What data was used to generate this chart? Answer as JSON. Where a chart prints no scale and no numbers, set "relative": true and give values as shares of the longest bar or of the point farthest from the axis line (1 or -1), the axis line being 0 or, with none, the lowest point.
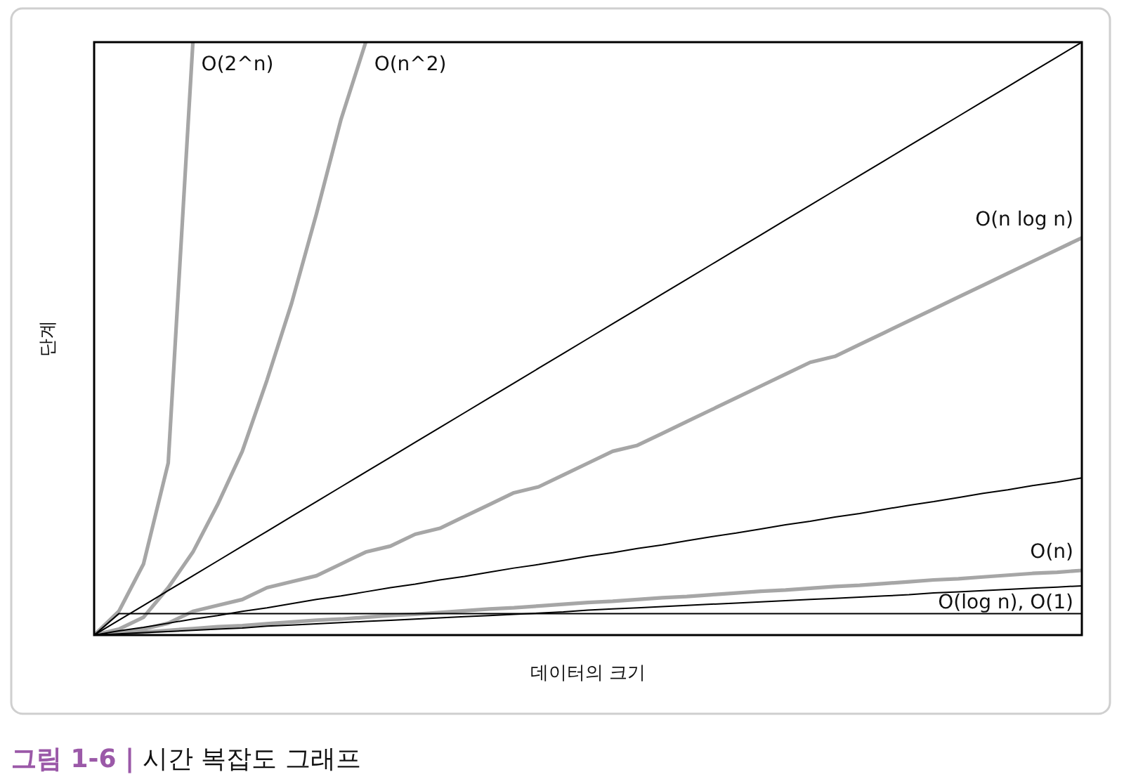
{
  "chart_data": {
    "type": "line",
    "relative": true,
    "title": "**그림 1-6 |** 시간 복잡도 그래프",
    "xlabel": "데이터의 크기",
    "ylabel": "단계",
    "categories": [
      null,
      null,
      null,
      null,
      null,
      null,
      null,
      null,
      null,
      null,
      null,
      null,
      null,
      null,
      null,
      null,
      null,
      null,
      null,
      null,
      null,
      null,
      null,
      null,
      null,
      null,
      null,
      null,
      null,
      null,
      null,
      null,
      null,
      null,
      null,
      null,
      null,
      null,
      null,
      null,
      null
    ],
    "series": [
      {
        "name": "O(2^n)",
        "color": "#a6a6a6",
        "values": [
          0,
          0.04,
          0.12,
          0.29,
          1,
          null,
          null,
          null,
          null,
          null,
          null,
          null,
          null,
          null,
          null,
          null,
          null,
          null,
          null,
          null,
          null,
          null,
          null,
          null,
          null,
          null,
          null,
          null,
          null,
          null,
          null,
          null,
          null,
          null,
          null,
          null,
          null,
          null,
          null,
          null,
          null
        ]
      },
      {
        "name": "O(n^2)",
        "color": "#a6a6a6",
        "values": [
          0,
          0.01,
          0.03,
          0.08,
          0.14,
          0.22,
          0.31,
          0.43,
          0.56,
          0.71,
          0.87,
          1,
          null,
          null,
          null,
          null,
          null,
          null,
          null,
          null,
          null,
          null,
          null,
          null,
          null,
          null,
          null,
          null,
          null,
          null,
          null,
          null,
          null,
          null,
          null,
          null,
          null,
          null,
          null,
          null,
          null
        ]
      },
      {
        "name": "O(n log n)",
        "color": "#a6a6a6",
        "values": [
          0,
          0.004,
          0.01,
          0.02,
          0.04,
          0.05,
          0.06,
          0.08,
          0.09,
          0.1,
          0.12,
          0.14,
          0.15,
          0.17,
          0.18,
          0.2,
          0.22,
          0.24,
          0.25,
          0.27,
          0.29,
          0.31,
          0.32,
          0.34,
          0.36,
          0.38,
          0.4,
          0.42,
          0.44,
          0.46,
          0.47,
          0.49,
          0.51,
          0.53,
          0.55,
          0.57,
          0.59,
          0.61,
          0.63,
          0.65,
          0.67
        ]
      },
      {
        "name": "O(n)",
        "color": "#a6a6a6",
        "values": [
          0,
          0.003,
          0.005,
          0.008,
          0.011,
          0.014,
          0.016,
          0.019,
          0.022,
          0.025,
          0.027,
          0.03,
          0.033,
          0.035,
          0.038,
          0.041,
          0.044,
          0.046,
          0.049,
          0.052,
          0.055,
          0.057,
          0.06,
          0.063,
          0.065,
          0.068,
          0.071,
          0.074,
          0.076,
          0.079,
          0.082,
          0.084,
          0.087,
          0.09,
          0.093,
          0.095,
          0.098,
          0.101,
          0.104,
          0.106,
          0.109
        ]
      },
      {
        "color": "#000000",
        "values": [
          0,
          0.025,
          0.05,
          0.075,
          0.1,
          0.125,
          0.15,
          0.175,
          0.2,
          0.225,
          0.25,
          0.275,
          0.3,
          0.325,
          0.35,
          0.375,
          0.4,
          0.425,
          0.45,
          0.475,
          0.5,
          0.525,
          0.55,
          0.575,
          0.6,
          0.625,
          0.65,
          0.675,
          0.7,
          0.725,
          0.75,
          0.775,
          0.8,
          0.825,
          0.85,
          0.875,
          0.9,
          0.925,
          0.95,
          0.975,
          1
        ]
      },
      {
        "color": "#000000",
        "values": [
          0,
          0.007,
          0.013,
          0.02,
          0.027,
          0.033,
          0.04,
          0.046,
          0.053,
          0.06,
          0.066,
          0.073,
          0.08,
          0.086,
          0.093,
          0.099,
          0.106,
          0.113,
          0.119,
          0.126,
          0.133,
          0.139,
          0.146,
          0.152,
          0.159,
          0.166,
          0.172,
          0.179,
          0.186,
          0.192,
          0.199,
          0.205,
          0.212,
          0.219,
          0.225,
          0.232,
          0.239,
          0.245,
          0.252,
          0.258,
          0.265
        ]
      },
      {
        "color": "#000000",
        "values": [
          0,
          0.002,
          0.004,
          0.006,
          0.008,
          0.01,
          0.012,
          0.015,
          0.017,
          0.019,
          0.021,
          0.023,
          0.025,
          0.027,
          0.029,
          0.031,
          0.033,
          0.035,
          0.037,
          0.039,
          0.042,
          0.044,
          0.046,
          0.048,
          0.05,
          0.052,
          0.054,
          0.056,
          0.058,
          0.06,
          0.062,
          0.064,
          0.066,
          0.068,
          0.071,
          0.073,
          0.075,
          0.077,
          0.079,
          0.081,
          0.083
        ]
      },
      {
        "color": "#000000",
        "values": [
          0,
          0.036,
          0.036,
          0.036,
          0.036,
          0.036,
          0.036,
          0.036,
          0.036,
          0.036,
          0.036,
          0.036,
          0.036,
          0.036,
          0.036,
          0.036,
          0.036,
          0.036,
          0.036,
          0.036,
          0.036,
          0.036,
          0.036,
          0.036,
          0.036,
          0.036,
          0.036,
          0.036,
          0.036,
          0.036,
          0.036,
          0.036,
          0.036,
          0.036,
          0.036,
          0.036,
          0.036,
          0.036,
          0.036,
          0.036,
          0.036
        ]
      }
    ],
    "annotations": [
      "O(log n), O(1)"
    ]
  }
}
